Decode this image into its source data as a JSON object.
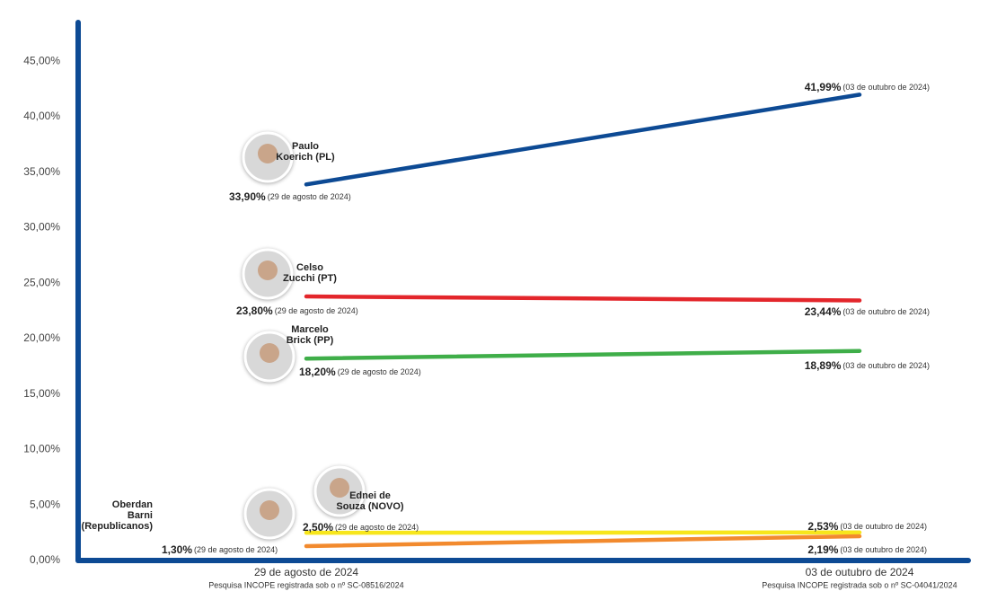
{
  "chart_data": {
    "type": "line",
    "categories": [
      "29 de agosto de 2024",
      "03 de outubro de 2024"
    ],
    "category_notes": [
      "Pesquisa INCOPE registrada sob o nº SC-08516/2024",
      "Pesquisa INCOPE registrada sob o nº SC-04041/2024"
    ],
    "point_notes": [
      "(29 de agosto de 2024)",
      "(03 de outubro de 2024)"
    ],
    "ylim": [
      0,
      48.5
    ],
    "yticks": [
      {
        "value": 0,
        "label": "0,00%"
      },
      {
        "value": 5,
        "label": "5,00%"
      },
      {
        "value": 10,
        "label": "10,00%"
      },
      {
        "value": 15,
        "label": "15,00%"
      },
      {
        "value": 20,
        "label": "20,00%"
      },
      {
        "value": 25,
        "label": "25,00%"
      },
      {
        "value": 30,
        "label": "30,00%"
      },
      {
        "value": 35,
        "label": "35,00%"
      },
      {
        "value": 40,
        "label": "40,00%"
      },
      {
        "value": 45,
        "label": "45,00%"
      }
    ],
    "axis_color": "#0d4a94",
    "series": [
      {
        "name": "Paulo\nKoerich (PL)",
        "color": "#0d4a94",
        "values": [
          33.9,
          41.99
        ],
        "value_labels": [
          "33,90%",
          "41,99%"
        ]
      },
      {
        "name": "Celso\nZucchi (PT)",
        "color": "#e3262b",
        "values": [
          23.8,
          23.44
        ],
        "value_labels": [
          "23,80%",
          "23,44%"
        ]
      },
      {
        "name": "Marcelo\nBrick (PP)",
        "color": "#3fae49",
        "values": [
          18.2,
          18.89
        ],
        "value_labels": [
          "18,20%",
          "18,89%"
        ]
      },
      {
        "name": "Ednei de\nSouza (NOVO)",
        "color": "#f7e61c",
        "values": [
          2.5,
          2.53
        ],
        "value_labels": [
          "2,50%",
          "2,53%"
        ]
      },
      {
        "name": "Oberdan\nBarni\n(Republicanos)",
        "color": "#f28a2e",
        "values": [
          1.3,
          2.19
        ],
        "value_labels": [
          "1,30%",
          "2,19%"
        ]
      }
    ]
  }
}
